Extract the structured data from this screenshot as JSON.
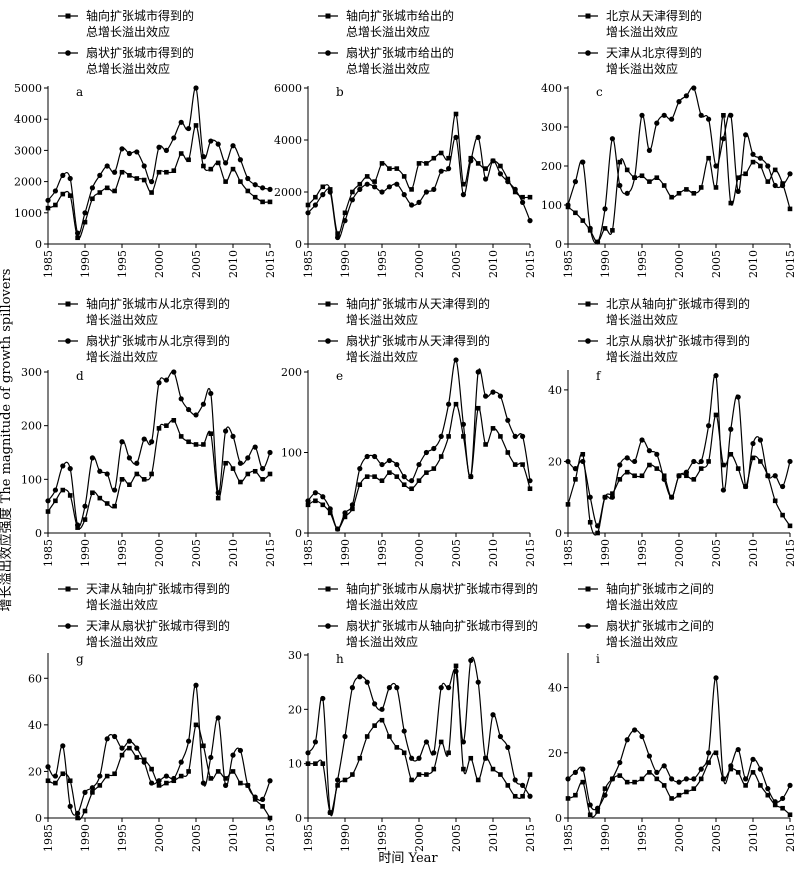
{
  "figure": {
    "ylabel": "增长溢出效应强度 The magnitude of growth spillovers",
    "xlabel": "时间 Year"
  },
  "chart_data": [
    {
      "type": "line",
      "panel_letter": "a",
      "legend": [
        "轴向扩张城市得到的\n总增长溢出效应",
        "扇状扩张城市得到的\n总增长溢出效应"
      ],
      "x": [
        1985,
        1986,
        1987,
        1988,
        1989,
        1990,
        1991,
        1992,
        1993,
        1994,
        1995,
        1996,
        1997,
        1998,
        1999,
        2000,
        2001,
        2002,
        2003,
        2004,
        2005,
        2006,
        2007,
        2008,
        2009,
        2010,
        2011,
        2012,
        2013,
        2014,
        2015
      ],
      "series": [
        {
          "marker": "square",
          "values": [
            1150,
            1250,
            1600,
            1550,
            200,
            700,
            1450,
            1650,
            1800,
            1700,
            2300,
            2200,
            2100,
            2050,
            1650,
            2300,
            2300,
            2350,
            2900,
            2700,
            3800,
            2500,
            2400,
            2600,
            2000,
            2400,
            2000,
            1700,
            1500,
            1350,
            1350
          ]
        },
        {
          "marker": "circle",
          "values": [
            1400,
            1700,
            2200,
            2100,
            350,
            1000,
            1800,
            2200,
            2500,
            2300,
            3050,
            2900,
            2950,
            2500,
            2000,
            3100,
            3000,
            3400,
            3900,
            3700,
            5000,
            2800,
            3300,
            3200,
            2600,
            3150,
            2700,
            2100,
            1900,
            1800,
            1750
          ]
        }
      ],
      "ylim": [
        0,
        5000
      ],
      "yticks": [
        0,
        1000,
        2000,
        3000,
        4000,
        5000
      ],
      "xticks": [
        1985,
        1990,
        1995,
        2000,
        2005,
        2010,
        2015
      ]
    },
    {
      "type": "line",
      "panel_letter": "b",
      "legend": [
        "轴向扩张城市给出的\n总增长溢出效应",
        "扇状扩张城市给出的\n总增长溢出效应"
      ],
      "x": [
        1985,
        1986,
        1987,
        1988,
        1989,
        1990,
        1991,
        1992,
        1993,
        1994,
        1995,
        1996,
        1997,
        1998,
        1999,
        2000,
        2001,
        2002,
        2003,
        2004,
        2005,
        2006,
        2007,
        2008,
        2009,
        2010,
        2011,
        2012,
        2013,
        2014,
        2015
      ],
      "series": [
        {
          "marker": "square",
          "values": [
            1500,
            1800,
            2200,
            2100,
            400,
            1200,
            2000,
            2300,
            2600,
            2400,
            3100,
            2900,
            2900,
            2600,
            2100,
            3100,
            3100,
            3300,
            3500,
            3300,
            5000,
            2300,
            3300,
            3100,
            2900,
            3200,
            3000,
            2500,
            2000,
            1800,
            1800
          ]
        },
        {
          "marker": "circle",
          "values": [
            1200,
            1500,
            1900,
            2000,
            250,
            900,
            1700,
            2100,
            2300,
            2200,
            2000,
            2200,
            2300,
            1900,
            1500,
            1600,
            2000,
            2100,
            2800,
            2900,
            4100,
            1900,
            3200,
            4100,
            2500,
            3200,
            2700,
            2400,
            2100,
            1600,
            900
          ]
        }
      ],
      "ylim": [
        0,
        6000
      ],
      "yticks": [
        0,
        2000,
        4000,
        6000
      ],
      "xticks": [
        1985,
        1990,
        1995,
        2000,
        2005,
        2010,
        2015
      ]
    },
    {
      "type": "line",
      "panel_letter": "c",
      "legend": [
        "北京从天津得到的\n增长溢出效应",
        "天津从北京得到的\n增长溢出效应"
      ],
      "x": [
        1985,
        1986,
        1987,
        1988,
        1989,
        1990,
        1991,
        1992,
        1993,
        1994,
        1995,
        1996,
        1997,
        1998,
        1999,
        2000,
        2001,
        2002,
        2003,
        2004,
        2005,
        2006,
        2007,
        2008,
        2009,
        2010,
        2011,
        2012,
        2013,
        2014,
        2015
      ],
      "series": [
        {
          "marker": "square",
          "values": [
            95,
            80,
            60,
            35,
            5,
            40,
            35,
            210,
            190,
            170,
            175,
            160,
            170,
            150,
            120,
            130,
            140,
            130,
            145,
            220,
            145,
            330,
            105,
            170,
            180,
            210,
            200,
            160,
            190,
            155,
            90
          ]
        },
        {
          "marker": "circle",
          "values": [
            100,
            160,
            210,
            40,
            5,
            90,
            270,
            150,
            130,
            170,
            330,
            240,
            310,
            330,
            320,
            365,
            380,
            400,
            330,
            320,
            200,
            270,
            330,
            135,
            280,
            230,
            220,
            200,
            150,
            150,
            180
          ]
        }
      ],
      "ylim": [
        0,
        400
      ],
      "yticks": [
        0,
        100,
        200,
        300,
        400
      ],
      "xticks": [
        1985,
        1990,
        1995,
        2000,
        2005,
        2010,
        2015
      ]
    },
    {
      "type": "line",
      "panel_letter": "d",
      "legend": [
        "轴向扩张城市从北京得到的\n增长溢出效应",
        "扇状扩张城市从北京得到的\n增长溢出效应"
      ],
      "x": [
        1985,
        1986,
        1987,
        1988,
        1989,
        1990,
        1991,
        1992,
        1993,
        1994,
        1995,
        1996,
        1997,
        1998,
        1999,
        2000,
        2001,
        2002,
        2003,
        2004,
        2005,
        2006,
        2007,
        2008,
        2009,
        2010,
        2011,
        2012,
        2013,
        2014,
        2015
      ],
      "series": [
        {
          "marker": "square",
          "values": [
            40,
            60,
            80,
            70,
            10,
            25,
            75,
            65,
            55,
            50,
            100,
            90,
            110,
            100,
            110,
            195,
            200,
            210,
            180,
            170,
            165,
            165,
            185,
            65,
            130,
            120,
            95,
            110,
            115,
            100,
            110
          ]
        },
        {
          "marker": "circle",
          "values": [
            60,
            80,
            125,
            120,
            15,
            50,
            140,
            115,
            110,
            80,
            170,
            140,
            130,
            175,
            170,
            280,
            285,
            300,
            250,
            230,
            220,
            240,
            260,
            75,
            190,
            180,
            130,
            140,
            160,
            120,
            150
          ]
        }
      ],
      "ylim": [
        0,
        300
      ],
      "yticks": [
        0,
        100,
        200,
        300
      ],
      "xticks": [
        1985,
        1990,
        1995,
        2000,
        2005,
        2010,
        2015
      ]
    },
    {
      "type": "line",
      "panel_letter": "e",
      "legend": [
        "轴向扩张城市从天津得到的\n增长溢出效应",
        "扇状扩张城市从天津得到的\n增长溢出效应"
      ],
      "x": [
        1985,
        1986,
        1987,
        1988,
        1989,
        1990,
        1991,
        1992,
        1993,
        1994,
        1995,
        1996,
        1997,
        1998,
        1999,
        2000,
        2001,
        2002,
        2003,
        2004,
        2005,
        2006,
        2007,
        2008,
        2009,
        2010,
        2011,
        2012,
        2013,
        2014,
        2015
      ],
      "series": [
        {
          "marker": "square",
          "values": [
            35,
            40,
            35,
            25,
            5,
            20,
            30,
            60,
            70,
            70,
            65,
            75,
            70,
            60,
            55,
            65,
            75,
            80,
            95,
            120,
            160,
            120,
            70,
            155,
            110,
            130,
            120,
            100,
            85,
            85,
            55
          ]
        },
        {
          "marker": "circle",
          "values": [
            40,
            50,
            45,
            30,
            5,
            25,
            35,
            80,
            95,
            95,
            85,
            90,
            85,
            70,
            65,
            85,
            100,
            105,
            120,
            160,
            215,
            135,
            70,
            200,
            170,
            175,
            170,
            140,
            120,
            120,
            65
          ]
        }
      ],
      "ylim": [
        0,
        200
      ],
      "yticks": [
        0,
        100,
        200
      ],
      "xticks": [
        1985,
        1990,
        1995,
        2000,
        2005,
        2010,
        2015
      ]
    },
    {
      "type": "line",
      "panel_letter": "f",
      "legend": [
        "北京从轴向扩张城市得到的\n增长溢出效应",
        "北京从扇状扩张城市得到的\n增长溢出效应"
      ],
      "x": [
        1985,
        1986,
        1987,
        1988,
        1989,
        1990,
        1991,
        1992,
        1993,
        1994,
        1995,
        1996,
        1997,
        1998,
        1999,
        2000,
        2001,
        2002,
        2003,
        2004,
        2005,
        2006,
        2007,
        2008,
        2009,
        2010,
        2011,
        2012,
        2013,
        2014,
        2015
      ],
      "series": [
        {
          "marker": "square",
          "values": [
            8,
            15,
            22,
            3,
            0,
            10,
            11,
            15,
            17,
            16,
            16,
            19,
            18,
            16,
            10,
            16,
            16,
            15,
            18,
            20,
            33,
            19,
            22,
            18,
            13,
            21,
            20,
            16,
            9,
            5,
            2
          ]
        },
        {
          "marker": "circle",
          "values": [
            20,
            18,
            20,
            10,
            2,
            10,
            10,
            19,
            21,
            20,
            26,
            23,
            22,
            15,
            10,
            16,
            17,
            20,
            20,
            30,
            44,
            12,
            29,
            38,
            13,
            25,
            26,
            16,
            16,
            13,
            20
          ]
        }
      ],
      "ylim": [
        0,
        45
      ],
      "yticks": [
        0,
        20,
        40
      ],
      "xticks": [
        1985,
        1990,
        1995,
        2000,
        2005,
        2010,
        2015
      ]
    },
    {
      "type": "line",
      "panel_letter": "g",
      "legend": [
        "天津从轴向扩张城市得到的\n增长溢出效应",
        "天津从扇状扩张城市得到的\n增长溢出效应"
      ],
      "x": [
        1985,
        1986,
        1987,
        1988,
        1989,
        1990,
        1991,
        1992,
        1993,
        1994,
        1995,
        1996,
        1997,
        1998,
        1999,
        2000,
        2001,
        2002,
        2003,
        2004,
        2005,
        2006,
        2007,
        2008,
        2009,
        2010,
        2011,
        2012,
        2013,
        2014,
        2015
      ],
      "series": [
        {
          "marker": "square",
          "values": [
            16,
            15,
            19,
            16,
            0,
            3,
            11,
            14,
            18,
            19,
            27,
            30,
            26,
            25,
            21,
            14,
            15,
            16,
            18,
            20,
            40,
            31,
            17,
            20,
            17,
            20,
            15,
            14,
            8,
            5,
            0
          ]
        },
        {
          "marker": "circle",
          "values": [
            22,
            18,
            31,
            5,
            2,
            11,
            13,
            18,
            34,
            35,
            30,
            33,
            30,
            24,
            15,
            16,
            18,
            17,
            24,
            33,
            57,
            15,
            26,
            43,
            14,
            27,
            29,
            14,
            9,
            8,
            16
          ]
        }
      ],
      "ylim": [
        0,
        70
      ],
      "yticks": [
        0,
        20,
        40,
        60
      ],
      "xticks": [
        1985,
        1990,
        1995,
        2000,
        2005,
        2010,
        2015
      ]
    },
    {
      "type": "line",
      "panel_letter": "h",
      "legend": [
        "轴向扩张城市从扇状扩张城市得到的\n增长溢出效应",
        "扇状扩张城市从轴向扩张城市得到的\n增长溢出效应"
      ],
      "x": [
        1985,
        1986,
        1987,
        1988,
        1989,
        1990,
        1991,
        1992,
        1993,
        1994,
        1995,
        1996,
        1997,
        1998,
        1999,
        2000,
        2001,
        2002,
        2003,
        2004,
        2005,
        2006,
        2007,
        2008,
        2009,
        2010,
        2011,
        2012,
        2013,
        2014,
        2015
      ],
      "series": [
        {
          "marker": "square",
          "values": [
            10,
            10,
            10,
            1,
            6,
            7,
            8,
            11,
            15,
            17,
            18,
            15,
            13,
            12,
            7,
            8,
            8,
            9,
            14,
            12,
            28,
            9,
            11,
            7,
            11,
            9,
            8,
            6,
            4,
            4,
            8
          ]
        },
        {
          "marker": "circle",
          "values": [
            12,
            14,
            22,
            1,
            7,
            15,
            24,
            26,
            25,
            21,
            20,
            24,
            24,
            16,
            11,
            11,
            14,
            12,
            24,
            24,
            27,
            14,
            29,
            25,
            11,
            19,
            15,
            13,
            7,
            6,
            4
          ]
        }
      ],
      "ylim": [
        0,
        30
      ],
      "yticks": [
        0,
        10,
        20,
        30
      ],
      "xticks": [
        1985,
        1990,
        1995,
        2000,
        2005,
        2010,
        2015
      ]
    },
    {
      "type": "line",
      "panel_letter": "i",
      "legend": [
        "轴向扩张城市之间的\n增长溢出效应",
        "扇状扩张城市之间的\n增长溢出效应"
      ],
      "x": [
        1985,
        1986,
        1987,
        1988,
        1989,
        1990,
        1991,
        1992,
        1993,
        1994,
        1995,
        1996,
        1997,
        1998,
        1999,
        2000,
        2001,
        2002,
        2003,
        2004,
        2005,
        2006,
        2007,
        2008,
        2009,
        2010,
        2011,
        2012,
        2013,
        2014,
        2015
      ],
      "series": [
        {
          "marker": "square",
          "values": [
            6,
            7,
            11,
            1,
            2,
            9,
            12,
            13,
            11,
            11,
            12,
            14,
            12,
            10,
            6,
            7,
            8,
            9,
            12,
            17,
            20,
            12,
            15,
            14,
            10,
            14,
            10,
            7,
            4,
            3,
            1
          ]
        },
        {
          "marker": "circle",
          "values": [
            12,
            14,
            15,
            4,
            3,
            7,
            12,
            17,
            24,
            27,
            25,
            19,
            14,
            16,
            12,
            11,
            12,
            12,
            15,
            20,
            43,
            12,
            16,
            21,
            12,
            18,
            15,
            9,
            5,
            6,
            10
          ]
        }
      ],
      "ylim": [
        0,
        50
      ],
      "yticks": [
        0,
        20,
        40
      ],
      "xticks": [
        1985,
        1990,
        1995,
        2000,
        2005,
        2010,
        2015
      ]
    }
  ]
}
